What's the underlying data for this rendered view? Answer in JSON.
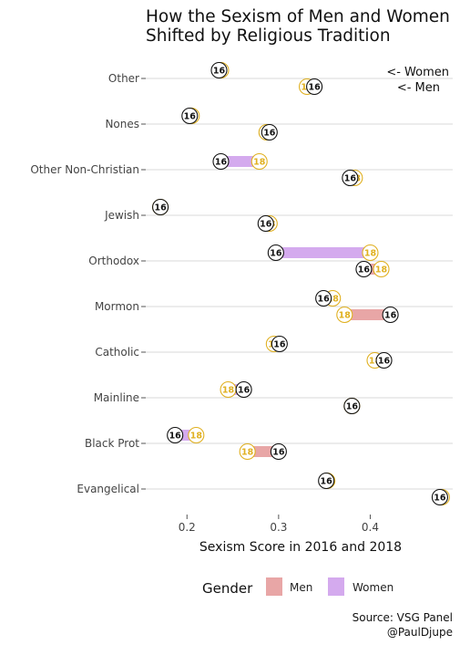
{
  "chart_data": {
    "type": "dumbbell",
    "title": "How the Sexism of Men and Women Shifted by Religious Tradition",
    "title_lines": [
      "How the Sexism of Men and Women",
      "Shifted by Religious Tradition"
    ],
    "xlabel": "Sexism Score in 2016 and 2018",
    "ylabel": "",
    "xlim": [
      0.155,
      0.49
    ],
    "x_ticks": [
      0.2,
      0.3,
      0.4
    ],
    "x_tick_labels": [
      "0.2",
      "0.3",
      "0.4"
    ],
    "grid": "horizontal",
    "annotations": {
      "women": "<- Women",
      "men": "<- Men"
    },
    "legend": {
      "title": "Gender",
      "position": "bottom",
      "items": [
        {
          "label": "Men",
          "color": "#e8a6a6"
        },
        {
          "label": "Women",
          "color": "#d4aaee"
        }
      ]
    },
    "marker_colors": {
      "2016": "#111111",
      "2018": "#e0b020"
    },
    "marker_labels": {
      "2016": "16",
      "2018": "18"
    },
    "categories": [
      "Other",
      "Nones",
      "Other Non-Christian",
      "Jewish",
      "Orthodox",
      "Mormon",
      "Catholic",
      "Mainline",
      "Black Prot",
      "Evangelical"
    ],
    "series": [
      {
        "name": "Women",
        "values_2016": [
          0.235,
          0.203,
          0.237,
          0.171,
          0.297,
          0.349,
          0.301,
          0.262,
          0.187,
          0.352
        ],
        "values_2018": [
          0.237,
          0.205,
          0.279,
          0.171,
          0.4,
          0.359,
          0.295,
          0.245,
          0.21,
          0.353
        ]
      },
      {
        "name": "Men",
        "values_2016": [
          0.339,
          0.29,
          0.378,
          0.286,
          0.393,
          0.422,
          0.415,
          0.38,
          0.3,
          0.476
        ],
        "values_2018": [
          0.331,
          0.287,
          0.383,
          0.29,
          0.412,
          0.372,
          0.405,
          0.38,
          0.266,
          0.478
        ]
      }
    ]
  },
  "footer": {
    "source": "Source: VSG Panel",
    "handle": "@PaulDjupe"
  }
}
